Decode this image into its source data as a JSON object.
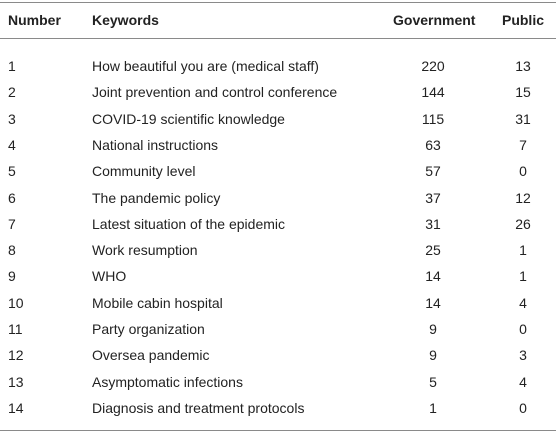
{
  "table": {
    "header": [
      "Number",
      "Keywords",
      "Government",
      "Public"
    ],
    "rows": [
      [
        1,
        "How beautiful you are (medical staff)",
        220,
        13
      ],
      [
        2,
        "Joint prevention and control conference",
        144,
        15
      ],
      [
        3,
        "COVID-19 scientific knowledge",
        115,
        31
      ],
      [
        4,
        "National instructions",
        63,
        7
      ],
      [
        5,
        "Community level",
        57,
        0
      ],
      [
        6,
        "The pandemic policy",
        37,
        12
      ],
      [
        7,
        "Latest situation of the epidemic",
        31,
        26
      ],
      [
        8,
        "Work resumption",
        25,
        1
      ],
      [
        9,
        "WHO",
        14,
        1
      ],
      [
        10,
        "Mobile cabin hospital",
        14,
        4
      ],
      [
        11,
        "Party organization",
        9,
        0
      ],
      [
        12,
        "Oversea pandemic",
        9,
        3
      ],
      [
        13,
        "Asymptomatic infections",
        5,
        4
      ],
      [
        14,
        "Diagnosis and treatment protocols",
        1,
        0
      ]
    ]
  }
}
